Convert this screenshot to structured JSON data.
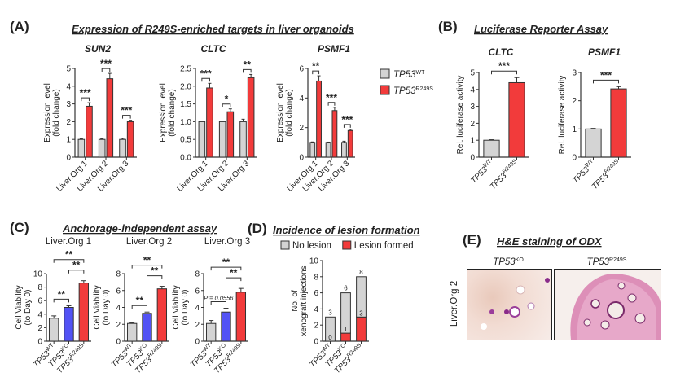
{
  "panels": {
    "A": {
      "label": "(A)",
      "title": "Expression of R249S-enriched targets in liver organoids"
    },
    "B": {
      "label": "(B)",
      "title": "Luciferase Reporter Assay"
    },
    "C": {
      "label": "(C)",
      "title": "Anchorage-independent assay"
    },
    "D": {
      "label": "(D)",
      "title": "Incidence of lesion formation"
    },
    "E": {
      "label": "(E)",
      "title": "H&E staining of ODX",
      "row_label": "Liver.Org 2",
      "images": [
        {
          "base": "TP53",
          "sup": "KO"
        },
        {
          "base": "TP53",
          "sup": "R249S"
        }
      ]
    }
  },
  "legend_A": [
    {
      "base": "TP53",
      "sup": "WT",
      "color": "#d4d4d4"
    },
    {
      "base": "TP53",
      "sup": "R249S",
      "color": "#f23b3b"
    }
  ],
  "legend_D": [
    {
      "label": "No lesion",
      "color": "#d4d4d4"
    },
    {
      "label": "Lesion formed",
      "color": "#f23b3b"
    }
  ],
  "colors": {
    "wt": "#d4d4d4",
    "r249s": "#f23b3b",
    "ko": "#5353f5"
  },
  "chart_data": [
    {
      "id": "A-SUN2",
      "type": "bar",
      "title": "SUN2",
      "ylabel": [
        "Expression level",
        "(fold change)"
      ],
      "ylim": [
        0,
        5
      ],
      "yticks": [
        "0",
        "1",
        "2",
        "3",
        "4",
        "5"
      ],
      "categories": [
        "Liver.Org 1",
        "Liver.Org 2",
        "Liver.Org 3"
      ],
      "series": [
        {
          "name": "TP53 WT",
          "values": [
            1,
            1,
            1
          ],
          "errors": [
            0.03,
            0.03,
            0.06
          ],
          "color": "#d4d4d4"
        },
        {
          "name": "TP53 R249S",
          "values": [
            2.87,
            4.42,
            2.0
          ],
          "errors": [
            0.2,
            0.3,
            0.08
          ],
          "color": "#f23b3b"
        }
      ],
      "significance": [
        {
          "group": 0,
          "label": "***"
        },
        {
          "group": 1,
          "label": "***"
        },
        {
          "group": 2,
          "label": "***"
        }
      ]
    },
    {
      "id": "A-CLTC",
      "type": "bar",
      "title": "CLTC",
      "ylabel": [
        "Expression level",
        "(fold change)"
      ],
      "ylim": [
        0,
        2.5
      ],
      "yticks": [
        "0.0",
        "0.5",
        "1.0",
        "1.5",
        "2.0",
        "2.5"
      ],
      "categories": [
        "Liver.Org 1",
        "Liver.Org 2",
        "Liver.Org 3"
      ],
      "series": [
        {
          "name": "TP53 WT",
          "values": [
            1,
            1,
            1
          ],
          "errors": [
            0.02,
            0.01,
            0.07
          ],
          "color": "#d4d4d4"
        },
        {
          "name": "TP53 R249S",
          "values": [
            1.95,
            1.28,
            2.24
          ],
          "errors": [
            0.13,
            0.08,
            0.09
          ],
          "color": "#f23b3b"
        }
      ],
      "significance": [
        {
          "group": 0,
          "label": "***"
        },
        {
          "group": 1,
          "label": "*"
        },
        {
          "group": 2,
          "label": "**"
        }
      ]
    },
    {
      "id": "A-PSMF1",
      "type": "bar",
      "title": "PSMF1",
      "ylabel": [
        "Expression level",
        "(fold change)"
      ],
      "ylim": [
        0,
        6
      ],
      "yticks": [
        "0",
        "2",
        "4",
        "6"
      ],
      "categories": [
        "Liver.Org 1",
        "Liver.Org 2",
        "Liver.Org 3"
      ],
      "series": [
        {
          "name": "TP53 WT",
          "values": [
            1,
            1,
            1
          ],
          "errors": [
            0.03,
            0.02,
            0.08
          ],
          "color": "#d4d4d4"
        },
        {
          "name": "TP53 R249S",
          "values": [
            5.15,
            3.15,
            1.8
          ],
          "errors": [
            0.35,
            0.22,
            0.08
          ],
          "color": "#f23b3b"
        }
      ],
      "significance": [
        {
          "group": 0,
          "label": "**"
        },
        {
          "group": 1,
          "label": "***"
        },
        {
          "group": 2,
          "label": "***"
        }
      ]
    },
    {
      "id": "B-CLTC",
      "type": "bar",
      "title": "CLTC",
      "ylabel": [
        "Rel. luciferase activity"
      ],
      "ylim": [
        0,
        5
      ],
      "yticks": [
        "0",
        "1",
        "2",
        "3",
        "4",
        "5"
      ],
      "categories": [
        {
          "base": "TP53",
          "sup": "WT"
        },
        {
          "base": "TP53",
          "sup": "R249S"
        }
      ],
      "series": [
        {
          "values": [
            1,
            4.4
          ],
          "errors": [
            0.03,
            0.3
          ]
        }
      ],
      "bar_colors": [
        "#d4d4d4",
        "#f23b3b"
      ],
      "significance": [
        {
          "from": 0,
          "to": 1,
          "label": "***"
        }
      ]
    },
    {
      "id": "B-PSMF1",
      "type": "bar",
      "title": "PSMF1",
      "ylabel": [
        "Rel. luciferase activity"
      ],
      "ylim": [
        0,
        3
      ],
      "yticks": [
        "0",
        "1",
        "2",
        "3"
      ],
      "categories": [
        {
          "base": "TP53",
          "sup": "WT"
        },
        {
          "base": "TP53",
          "sup": "R249S"
        }
      ],
      "series": [
        {
          "values": [
            1,
            2.42
          ],
          "errors": [
            0.02,
            0.08
          ]
        }
      ],
      "bar_colors": [
        "#d4d4d4",
        "#f23b3b"
      ],
      "significance": [
        {
          "from": 0,
          "to": 1,
          "label": "***"
        }
      ]
    },
    {
      "id": "C-Org1",
      "type": "bar",
      "title": "Liver.Org 1",
      "ylabel": [
        "Cell Viability",
        "(to Day 0)"
      ],
      "ylim": [
        0,
        10
      ],
      "yticks": [
        "0",
        "2",
        "4",
        "6",
        "8",
        "10"
      ],
      "categories": [
        {
          "base": "TP53",
          "sup": "WT"
        },
        {
          "base": "TP53",
          "sup": "KO"
        },
        {
          "base": "TP53",
          "sup": "R249S"
        }
      ],
      "series": [
        {
          "values": [
            3.4,
            5.0,
            8.6
          ],
          "errors": [
            0.35,
            0.25,
            0.35
          ]
        }
      ],
      "bar_colors": [
        "#d4d4d4",
        "#5353f5",
        "#f23b3b"
      ],
      "significance": [
        {
          "from": 0,
          "to": 1,
          "label": "**"
        },
        {
          "from": 1,
          "to": 2,
          "label": "**"
        },
        {
          "from": 0,
          "to": 2,
          "label": "**"
        }
      ]
    },
    {
      "id": "C-Org2",
      "type": "bar",
      "title": "Liver.Org 2",
      "ylabel": [
        "Cell Viability",
        "(to Day 0)"
      ],
      "ylim": [
        0,
        8
      ],
      "yticks": [
        "0",
        "2",
        "4",
        "6",
        "8"
      ],
      "categories": [
        {
          "base": "TP53",
          "sup": "WT"
        },
        {
          "base": "TP53",
          "sup": "KO"
        },
        {
          "base": "TP53",
          "sup": "R249S"
        }
      ],
      "series": [
        {
          "values": [
            2.1,
            3.3,
            6.2
          ],
          "errors": [
            0.08,
            0.15,
            0.3
          ]
        }
      ],
      "bar_colors": [
        "#d4d4d4",
        "#5353f5",
        "#f23b3b"
      ],
      "significance": [
        {
          "from": 0,
          "to": 1,
          "label": "**"
        },
        {
          "from": 1,
          "to": 2,
          "label": "**"
        },
        {
          "from": 0,
          "to": 2,
          "label": "**"
        }
      ]
    },
    {
      "id": "C-Org3",
      "type": "bar",
      "title": "Liver.Org 3",
      "ylabel": [
        "Cell Viability",
        "(to Day 0)"
      ],
      "ylim": [
        0,
        8
      ],
      "yticks": [
        "0",
        "2",
        "4",
        "6",
        "8"
      ],
      "categories": [
        {
          "base": "TP53",
          "sup": "WT"
        },
        {
          "base": "TP53",
          "sup": "KO"
        },
        {
          "base": "TP53",
          "sup": "R249S"
        }
      ],
      "series": [
        {
          "values": [
            2.1,
            3.45,
            5.8
          ],
          "errors": [
            0.35,
            0.45,
            0.45
          ]
        }
      ],
      "bar_colors": [
        "#d4d4d4",
        "#5353f5",
        "#f23b3b"
      ],
      "significance": [
        {
          "from": 0,
          "to": 1,
          "label": "P = 0.0556"
        },
        {
          "from": 1,
          "to": 2,
          "label": "**"
        },
        {
          "from": 0,
          "to": 2,
          "label": "**"
        }
      ]
    },
    {
      "id": "D",
      "type": "bar",
      "stacked": true,
      "ylabel": [
        "No. of",
        "xenograft injections"
      ],
      "ylim": [
        0,
        10
      ],
      "yticks": [
        "0",
        "2",
        "4",
        "6",
        "8",
        "10"
      ],
      "categories": [
        {
          "base": "TP53",
          "sup": "WT"
        },
        {
          "base": "TP53",
          "sup": "KO"
        },
        {
          "base": "TP53",
          "sup": "R249S"
        }
      ],
      "series": [
        {
          "name": "Lesion formed",
          "values": [
            0,
            1,
            3
          ],
          "color": "#f23b3b"
        },
        {
          "name": "No lesion",
          "values": [
            3,
            5,
            5
          ],
          "color": "#d4d4d4"
        }
      ],
      "totals": [
        "3",
        "6",
        "8"
      ],
      "lesion_labels": [
        "0",
        "1",
        "3"
      ]
    }
  ]
}
